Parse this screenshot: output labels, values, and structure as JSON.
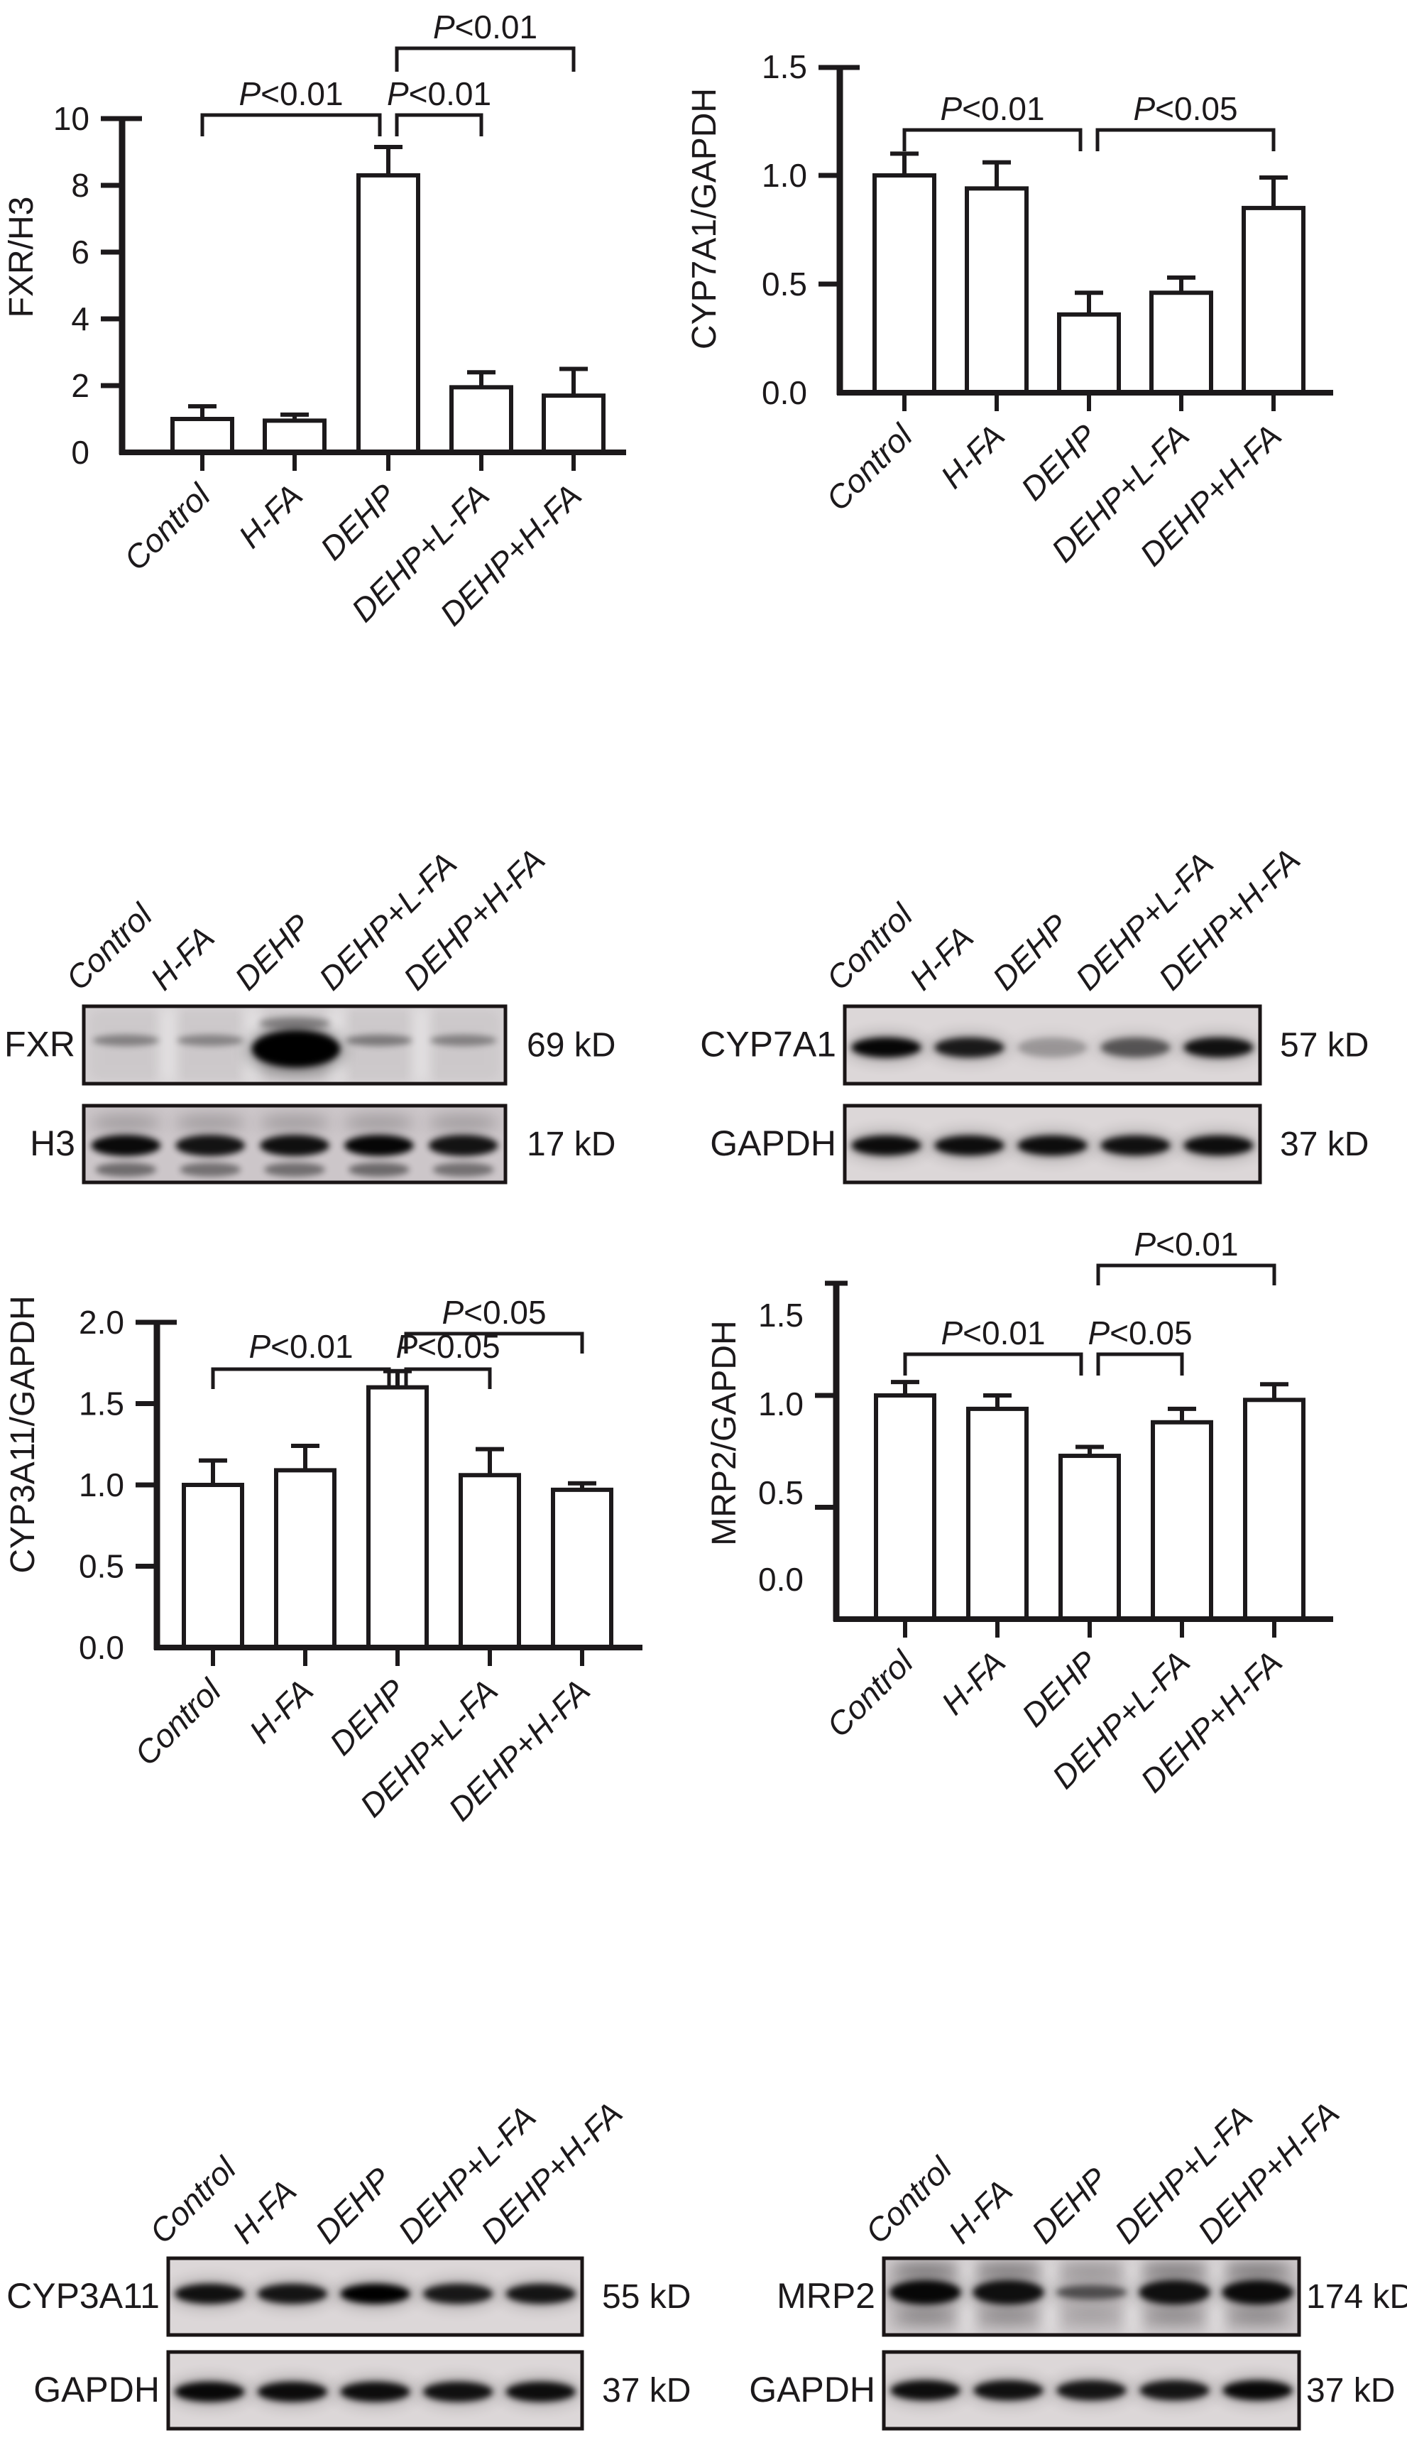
{
  "colors": {
    "ink": "#1c191b",
    "paper": "#ffffff"
  },
  "categories": [
    "Control",
    "H-FA",
    "DEHP",
    "DEHP+L-FA",
    "DEHP+H-FA"
  ],
  "chart_data": [
    {
      "id": "fxr_h3",
      "type": "bar",
      "title": "",
      "ylabel": "FXR/H3",
      "xlabel": "",
      "categories": [
        "Control",
        "H-FA",
        "DEHP",
        "DEHP+L-FA",
        "DEHP+H-FA"
      ],
      "values": [
        1.0,
        0.95,
        8.3,
        1.95,
        1.7
      ],
      "errors": [
        0.38,
        0.18,
        0.85,
        0.45,
        0.8
      ],
      "ylim": [
        0,
        10
      ],
      "grid": false,
      "yticks": [
        {
          "v": 0,
          "label": "0"
        },
        {
          "v": 2,
          "label": "2"
        },
        {
          "v": 4,
          "label": "4"
        },
        {
          "v": 6,
          "label": "6"
        },
        {
          "v": 8,
          "label": "8"
        },
        {
          "v": 10,
          "label": "10"
        }
      ],
      "brackets": [
        {
          "from": 0,
          "to": 2,
          "label": "P<0.01"
        },
        {
          "from": 2,
          "to": 3,
          "label": "P<0.01"
        },
        {
          "from": 2,
          "to": 4,
          "label": "P<0.01"
        }
      ]
    },
    {
      "id": "cyp7a1_gapdh",
      "type": "bar",
      "title": "",
      "ylabel": "CYP7A1/GAPDH",
      "xlabel": "",
      "categories": [
        "Control",
        "H-FA",
        "DEHP",
        "DEHP+L-FA",
        "DEHP+H-FA"
      ],
      "values": [
        1.0,
        0.94,
        0.36,
        0.46,
        0.85
      ],
      "errors": [
        0.1,
        0.12,
        0.1,
        0.07,
        0.14
      ],
      "ylim": [
        0,
        1.5
      ],
      "grid": false,
      "yticks": [
        {
          "v": 0,
          "label": "0.0"
        },
        {
          "v": 0.5,
          "label": "0.5"
        },
        {
          "v": 1.0,
          "label": "1.0"
        },
        {
          "v": 1.5,
          "label": "1.5"
        }
      ],
      "brackets": [
        {
          "from": 0,
          "to": 2,
          "label": "P<0.01"
        },
        {
          "from": 2,
          "to": 4,
          "label": "P<0.05"
        }
      ]
    },
    {
      "id": "cyp3a11_gapdh",
      "type": "bar",
      "title": "",
      "ylabel": "CYP3A11/GAPDH",
      "xlabel": "",
      "categories": [
        "Control",
        "H-FA",
        "DEHP",
        "DEHP+L-FA",
        "DEHP+H-FA"
      ],
      "values": [
        1.0,
        1.09,
        1.6,
        1.06,
        0.97
      ],
      "errors": [
        0.15,
        0.15,
        0.1,
        0.16,
        0.04
      ],
      "ylim": [
        0,
        2.0
      ],
      "grid": false,
      "yticks": [
        {
          "v": 0,
          "label": "0.0"
        },
        {
          "v": 0.5,
          "label": "0.5"
        },
        {
          "v": 1.0,
          "label": "1.0"
        },
        {
          "v": 1.5,
          "label": "1.5"
        },
        {
          "v": 2.0,
          "label": "2.0"
        }
      ],
      "brackets": [
        {
          "from": 0,
          "to": 2,
          "label": "P<0.01"
        },
        {
          "from": 2,
          "to": 3,
          "label": "P<0.05"
        },
        {
          "from": 2,
          "to": 4,
          "label": "P<0.05"
        }
      ]
    },
    {
      "id": "mrp2_gapdh",
      "type": "bar",
      "title": "",
      "ylabel": "MRP2/GAPDH",
      "xlabel": "",
      "categories": [
        "Control",
        "H-FA",
        "DEHP",
        "DEHP+L-FA",
        "DEHP+H-FA"
      ],
      "values": [
        1.0,
        0.94,
        0.73,
        0.88,
        0.98
      ],
      "errors": [
        0.06,
        0.06,
        0.04,
        0.06,
        0.07
      ],
      "ylim": [
        0,
        1.5
      ],
      "grid": false,
      "yticks": [
        {
          "v": 0,
          "label": "0.0"
        },
        {
          "v": 0.5,
          "label": "0.5"
        },
        {
          "v": 1.0,
          "label": "1.0"
        },
        {
          "v": 1.5,
          "label": "1.5"
        }
      ],
      "brackets": [
        {
          "from": 0,
          "to": 2,
          "label": "P<0.01"
        },
        {
          "from": 2,
          "to": 3,
          "label": "P<0.05"
        },
        {
          "from": 2,
          "to": 4,
          "label": "P<0.01"
        }
      ]
    }
  ],
  "blot_panels": [
    {
      "id": "blot_fxr_h3",
      "lanes": [
        "Control",
        "H-FA",
        "DEHP",
        "DEHP+L-FA",
        "DEHP+H-FA"
      ],
      "strips": [
        {
          "protein": "FXR",
          "size": "69 kD",
          "style": "faint",
          "intensities": [
            0.5,
            0.48,
            1.0,
            0.55,
            0.5
          ]
        },
        {
          "protein": "H3",
          "size": "17 kD",
          "style": "double",
          "intensities": [
            0.95,
            0.9,
            0.92,
            0.97,
            0.9
          ]
        }
      ]
    },
    {
      "id": "blot_cyp7a1_gapdh",
      "lanes": [
        "Control",
        "H-FA",
        "DEHP",
        "DEHP+L-FA",
        "DEHP+H-FA"
      ],
      "strips": [
        {
          "protein": "CYP7A1",
          "size": "57 kD",
          "style": "solid",
          "intensities": [
            0.96,
            0.85,
            0.25,
            0.55,
            0.9
          ]
        },
        {
          "protein": "GAPDH",
          "size": "37 kD",
          "style": "solid",
          "intensities": [
            0.93,
            0.92,
            0.92,
            0.9,
            0.92
          ]
        }
      ]
    },
    {
      "id": "blot_cyp3a11_gapdh",
      "lanes": [
        "Control",
        "H-FA",
        "DEHP",
        "DEHP+L-FA",
        "DEHP+H-FA"
      ],
      "strips": [
        {
          "protein": "CYP3A11",
          "size": "55 kD",
          "style": "solid",
          "intensities": [
            0.9,
            0.88,
            1.0,
            0.86,
            0.88
          ]
        },
        {
          "protein": "GAPDH",
          "size": "37 kD",
          "style": "solid",
          "intensities": [
            0.95,
            0.93,
            0.92,
            0.9,
            0.92
          ]
        }
      ]
    },
    {
      "id": "blot_mrp2_gapdh",
      "lanes": [
        "Control",
        "H-FA",
        "DEHP",
        "DEHP+L-FA",
        "DEHP+H-FA"
      ],
      "strips": [
        {
          "protein": "MRP2",
          "size": "174 kD",
          "style": "smear",
          "intensities": [
            0.95,
            0.9,
            0.55,
            0.9,
            0.93
          ]
        },
        {
          "protein": "GAPDH",
          "size": "37 kD",
          "style": "solid",
          "intensities": [
            0.92,
            0.9,
            0.88,
            0.88,
            0.95
          ]
        }
      ]
    }
  ]
}
